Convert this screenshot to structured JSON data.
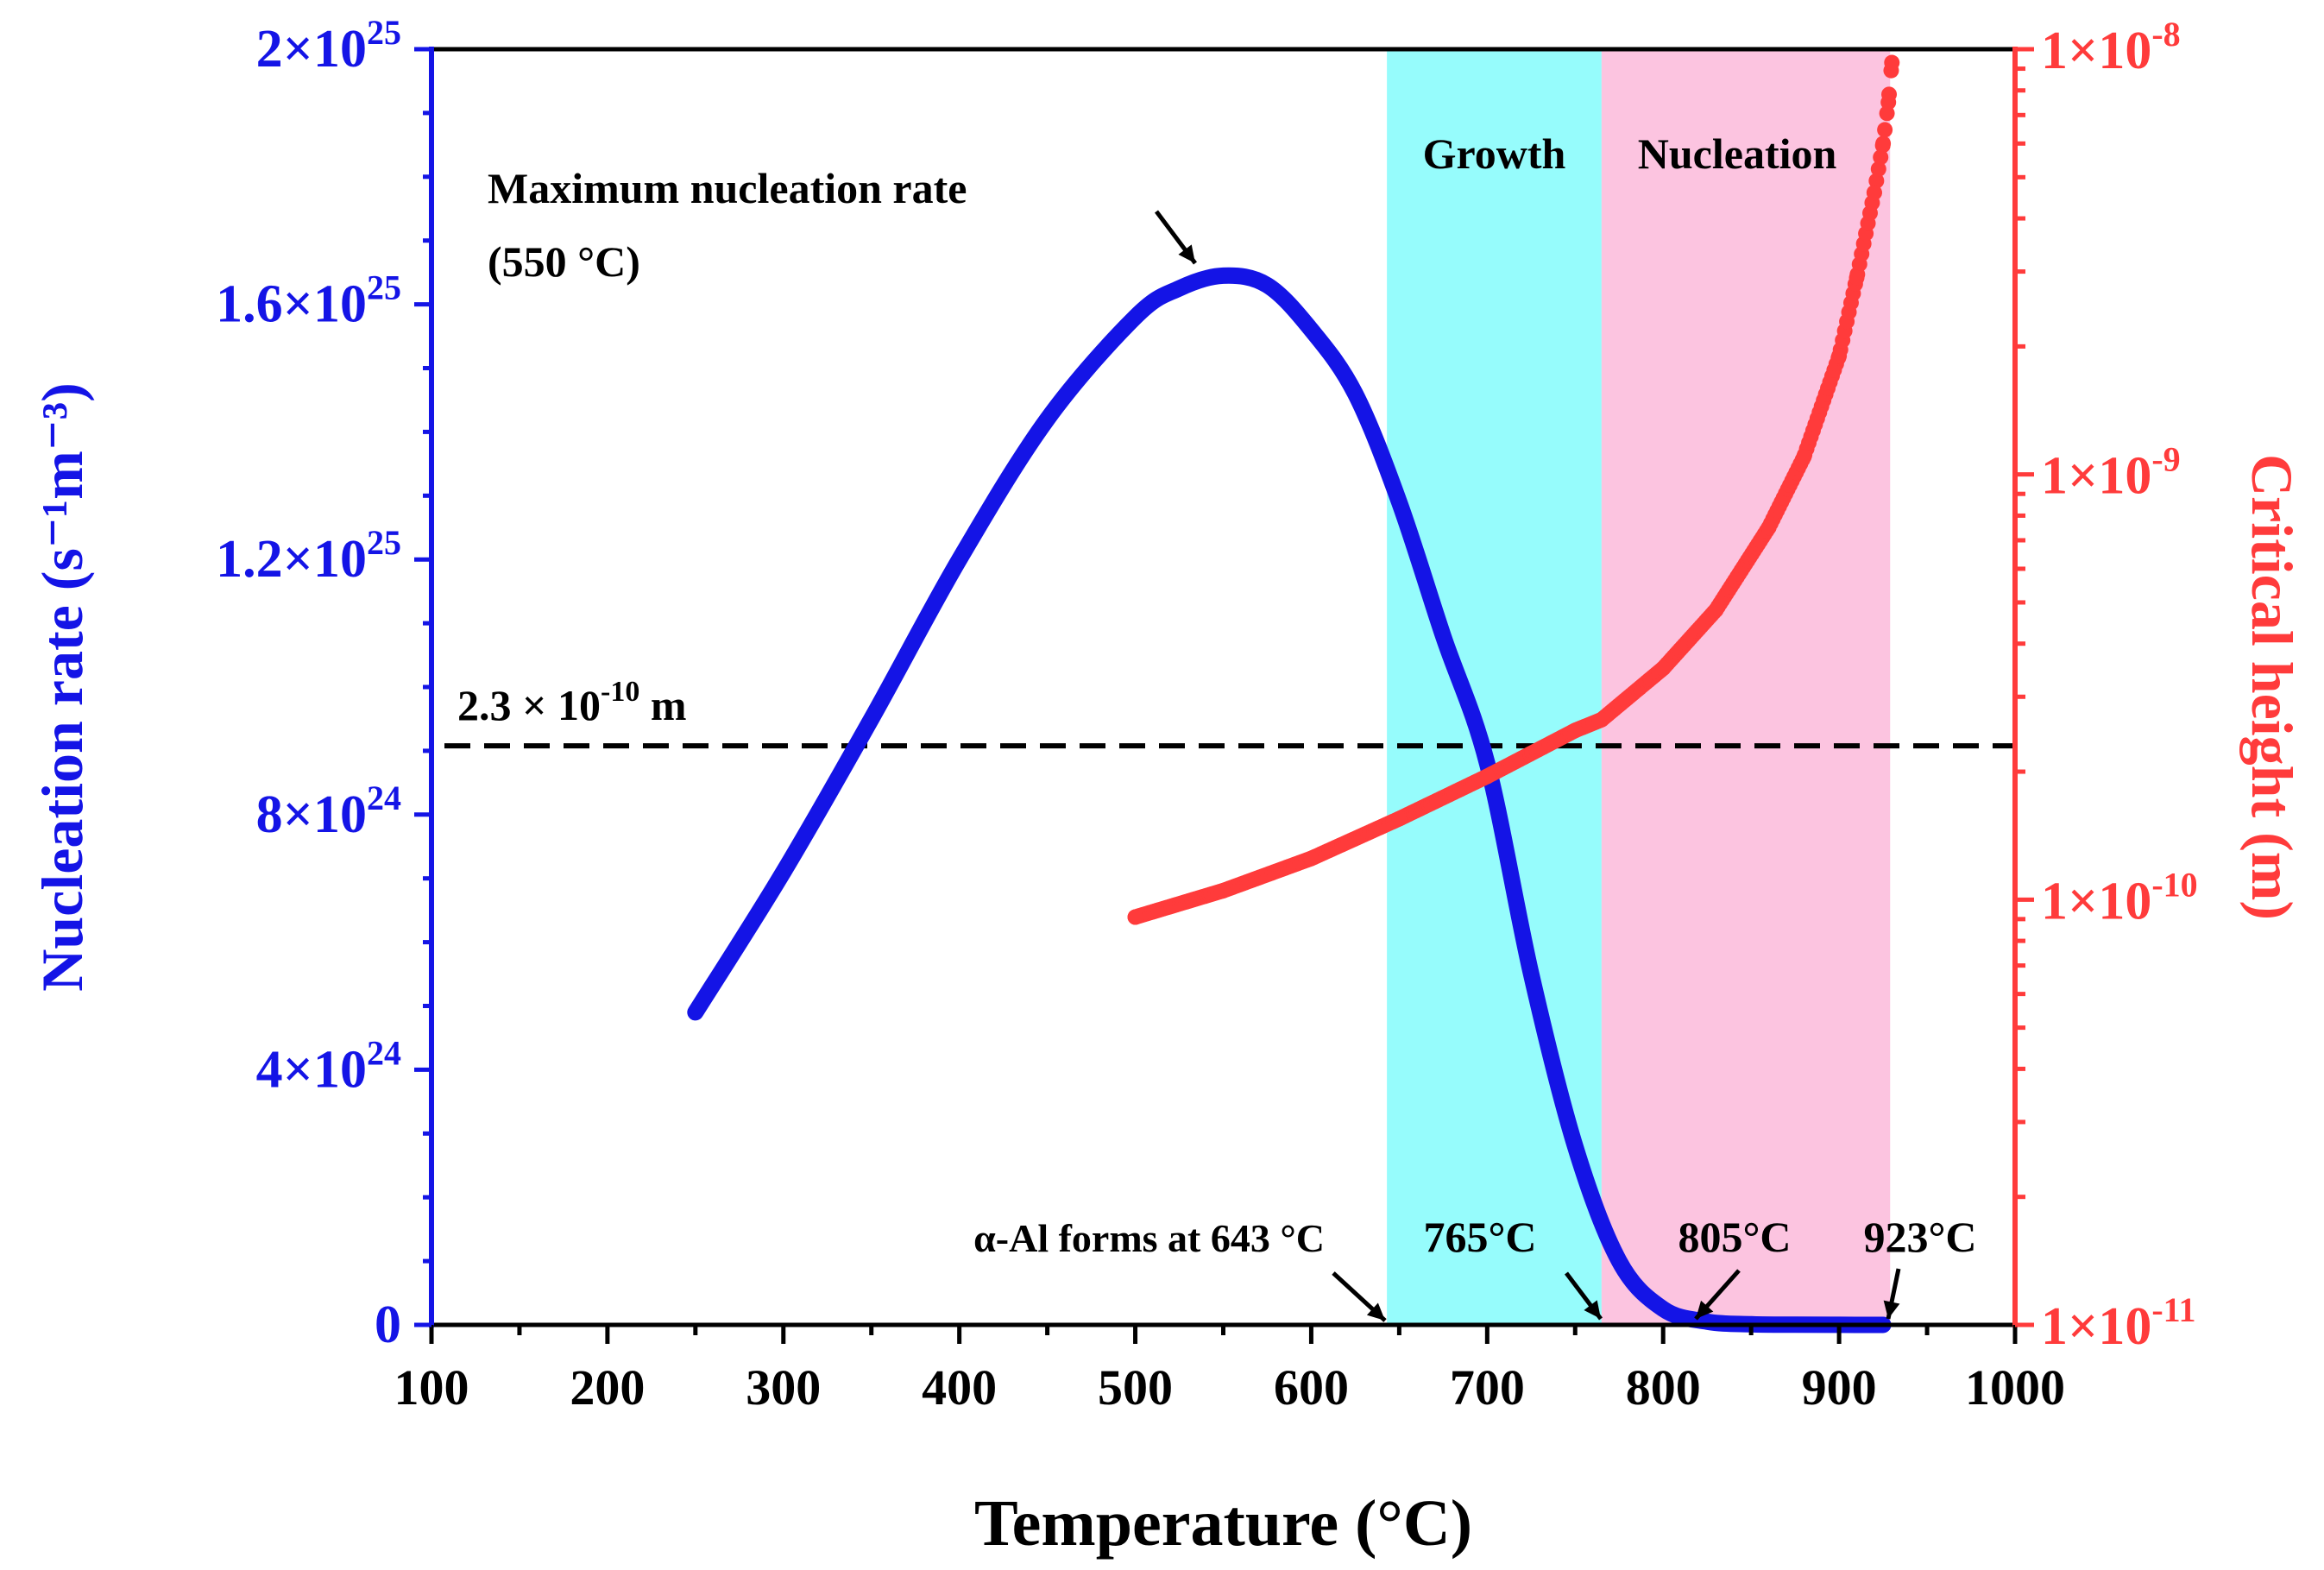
{
  "chart_data": {
    "type": "line",
    "title": "",
    "xlabel": "Temperature (°C)",
    "ylabel_left": "Nucleation rate (s⁻¹m⁻³)",
    "ylabel_right": "Critical height (m)",
    "xlim": [
      100,
      1000
    ],
    "ylim_left": [
      0,
      2e+25
    ],
    "ylim_right": [
      1e-11,
      1e-08
    ],
    "yscale_right": "log",
    "x_ticks": [
      "100",
      "200",
      "300",
      "400",
      "500",
      "600",
      "700",
      "800",
      "900",
      "1000"
    ],
    "y_ticks_left": [
      {
        "value": 0,
        "mant": "0",
        "exp": ""
      },
      {
        "value": 4e+24,
        "mant": "4×10",
        "exp": "24"
      },
      {
        "value": 8e+24,
        "mant": "8×10",
        "exp": "24"
      },
      {
        "value": 1.2e+25,
        "mant": "1.2×10",
        "exp": "25"
      },
      {
        "value": 1.6e+25,
        "mant": "1.6×10",
        "exp": "25"
      },
      {
        "value": 2e+25,
        "mant": "2×10",
        "exp": "25"
      }
    ],
    "y_ticks_right": [
      {
        "value": 1e-11,
        "mant": "1×10",
        "exp": "-11"
      },
      {
        "value": 1e-10,
        "mant": "1×10",
        "exp": "-10"
      },
      {
        "value": 1e-09,
        "mant": "1×10",
        "exp": "-9"
      },
      {
        "value": 1e-08,
        "mant": "1×10",
        "exp": "-8"
      }
    ],
    "series": [
      {
        "name": "Nucleation rate",
        "axis": "left",
        "color": "#1414e6",
        "x": [
          250,
          300,
          350,
          400,
          450,
          500,
          525,
          550,
          575,
          600,
          625,
          650,
          675,
          700,
          725,
          750,
          775,
          800,
          825,
          850,
          875,
          900,
          925
        ],
        "values": [
          4.9e+24,
          7.1e+24,
          9.5e+24,
          1.2e+25,
          1.42e+25,
          1.58e+25,
          1.625e+25,
          1.645e+25,
          1.63e+25,
          1.56e+25,
          1.46e+25,
          1.29e+25,
          1.08e+25,
          8.8e+24,
          5.5e+24,
          2.8e+24,
          1e+24,
          2.5e+23,
          5e+22,
          1e+22,
          3e+21,
          1e+21,
          5e+20
        ]
      },
      {
        "name": "Critical height",
        "axis": "right",
        "color": "#ff3b3b",
        "x": [
          500,
          550,
          600,
          650,
          700,
          750,
          765,
          800,
          830,
          860,
          880,
          900,
          910,
          920,
          925,
          928,
          930
        ],
        "values": [
          9.1e-11,
          1.05e-10,
          1.25e-10,
          1.55e-10,
          1.95e-10,
          2.5e-10,
          2.65e-10,
          3.5e-10,
          4.8e-10,
          7.5e-10,
          1.1e-09,
          1.9e-09,
          2.9e-09,
          4.6e-09,
          6e-09,
          7.5e-09,
          9.3e-09
        ]
      }
    ],
    "reference_line": {
      "value": 2.3e-10,
      "axis": "right",
      "style": "dashed",
      "label": "2.3 × 10",
      "label_exp": "-10",
      "label_unit": " m"
    },
    "regions": [
      {
        "name": "Growth",
        "x_start": 643,
        "x_end": 765,
        "color": "#96fcfc"
      },
      {
        "name": "Nucleation",
        "x_start": 765,
        "x_end": 929,
        "color": "#fcc4e0"
      }
    ],
    "annotations": {
      "max_rate_line1": "Maximum nucleation rate",
      "max_rate_line2": "(550 °C)",
      "alpha_al": "α-Al forms at 643 °C",
      "t765": "765°C",
      "t805": "805°C",
      "t923": "923°C"
    }
  }
}
